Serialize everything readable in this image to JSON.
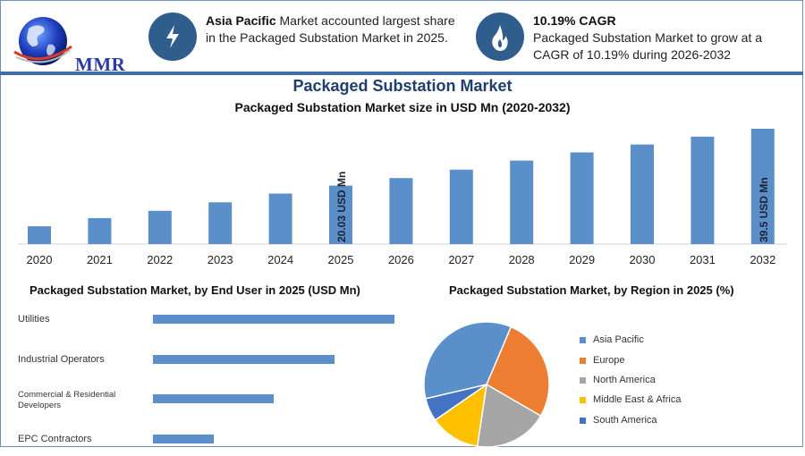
{
  "header": {
    "logo_text": "MMR",
    "info1": {
      "bold": "Asia Pacific",
      "text": " Market accounted largest share in the Packaged Substation Market in 2025."
    },
    "info2": {
      "bold": "10.19% CAGR",
      "text": "Packaged Substation Market to grow at a CAGR of 10.19% during 2026-2032"
    }
  },
  "colors": {
    "bar": "#5b8fc9",
    "accent": "#2f5d8c",
    "title": "#1f3e6e"
  },
  "chart_data": [
    {
      "type": "bar",
      "title": "Packaged Substation Market",
      "subtitle": "Packaged Substation Market size in USD Mn (2020-2032)",
      "categories": [
        "2020",
        "2021",
        "2022",
        "2023",
        "2024",
        "2025",
        "2026",
        "2027",
        "2028",
        "2029",
        "2030",
        "2031",
        "2032"
      ],
      "values": [
        6.1,
        8.9,
        11.4,
        14.3,
        17.3,
        20.03,
        22.6,
        25.5,
        28.6,
        31.4,
        34.1,
        36.8,
        39.5
      ],
      "annotations": [
        {
          "category": "2025",
          "text": "20.03 USD Mn"
        },
        {
          "category": "2032",
          "text": "39.5 USD Mn"
        }
      ],
      "ylim": [
        0,
        40
      ]
    },
    {
      "type": "bar",
      "orientation": "horizontal",
      "title": "Packaged Substation Market, by End User in 2025 (USD Mn)",
      "categories": [
        "Utilities",
        "Industrial Operators",
        "Commercial & Residential Developers",
        "EPC Contractors"
      ],
      "category_lines": [
        [
          "Utilities"
        ],
        [
          "Industrial Operators"
        ],
        [
          "Commercial & Residential",
          "Developers"
        ],
        [
          "EPC Contractors"
        ]
      ],
      "values": [
        8.0,
        6.0,
        4.0,
        2.0
      ],
      "xlim": [
        0,
        8.0
      ]
    },
    {
      "type": "pie",
      "title": "Packaged Substation Market, by Region in 2025 (%)",
      "labels": [
        "Asia Pacific",
        "Europe",
        "North America",
        "Middle East & Africa",
        "South America"
      ],
      "values": [
        35,
        27,
        19,
        13,
        6
      ],
      "colors": [
        "#5b8fc9",
        "#ed7d31",
        "#a5a5a5",
        "#ffc000",
        "#4472c4"
      ]
    }
  ]
}
